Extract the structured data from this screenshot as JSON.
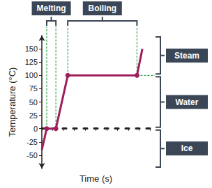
{
  "chart_data": {
    "type": "line",
    "x_label": "Time (s)",
    "y_label": "Temperature (°C)",
    "x": [
      0,
      0.45,
      1.3,
      2.4,
      8.8,
      9.3
    ],
    "values": [
      -40,
      0,
      0,
      100,
      100,
      150
    ],
    "color": "#9e1f5c",
    "marker": "circle",
    "xlim": [
      0,
      10
    ],
    "xticks": [
      0,
      1,
      2,
      3,
      4,
      5,
      6,
      7,
      8,
      9,
      10
    ],
    "ylim": [
      -75,
      175
    ],
    "yticks": [
      -50,
      -25,
      0,
      25,
      50,
      75,
      100,
      125,
      150
    ],
    "tick_labels": "y",
    "grid": false,
    "annotations": {
      "top": [
        "Melting",
        "Boiling"
      ],
      "right": [
        "Steam",
        "Water",
        "Ice"
      ]
    }
  }
}
